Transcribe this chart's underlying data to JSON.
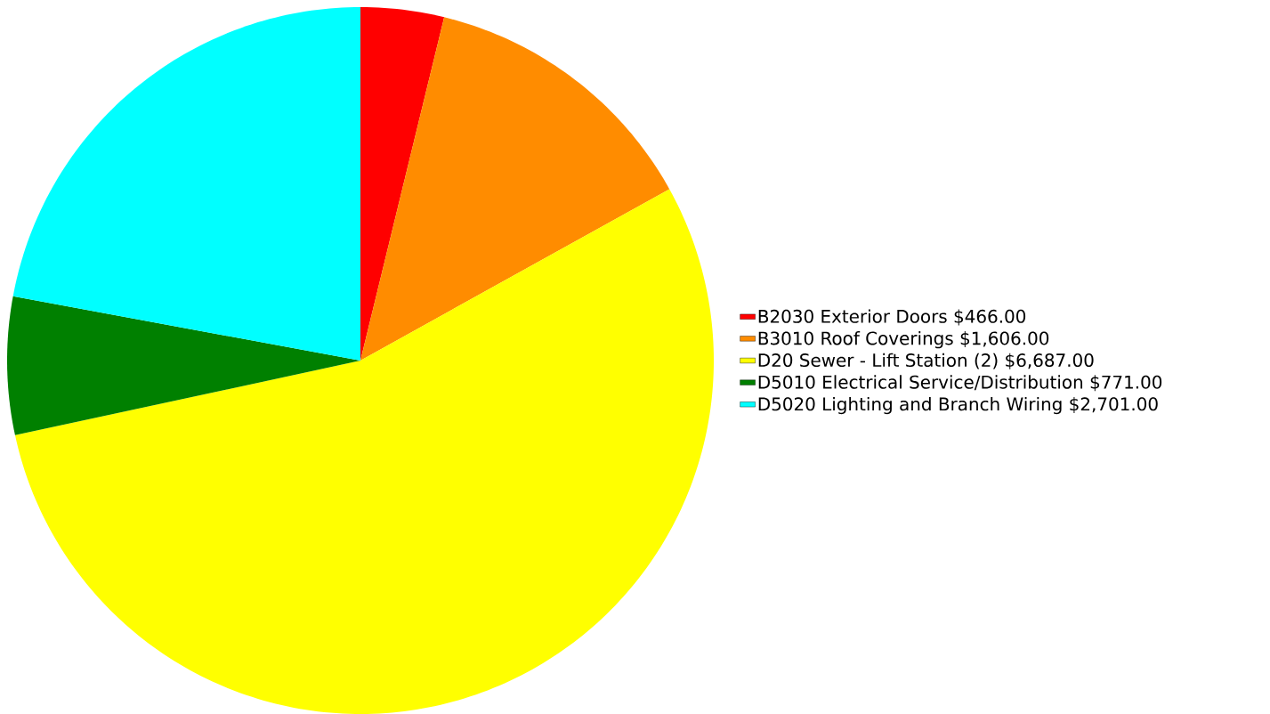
{
  "chart_data": {
    "type": "pie",
    "categories": [
      "B2030 Exterior Doors $466.00",
      "B3010 Roof Coverings $1,606.00",
      "D20 Sewer - Lift Station (2) $6,687.00",
      "D5010 Electrical Service/Distribution $771.00",
      "D5020 Lighting and Branch Wiring $2,701.00"
    ],
    "values": [
      466,
      1606,
      6687,
      771,
      2701
    ],
    "colors": [
      "#ff0000",
      "#ff8c00",
      "#ffff00",
      "#008000",
      "#00ffff"
    ],
    "legend": "right"
  }
}
